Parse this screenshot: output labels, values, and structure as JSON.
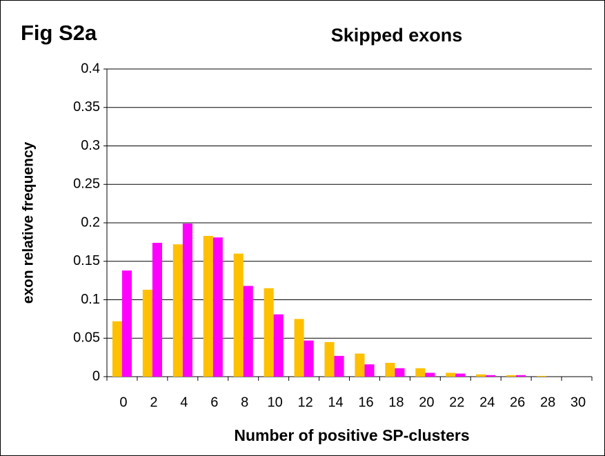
{
  "chart_data": {
    "type": "bar",
    "annotation": "Fig S2a",
    "title": "Skipped exons",
    "ylabel": "exon relative frequency",
    "xlabel": "Number of positive SP-clusters",
    "categories": [
      "0",
      "2",
      "4",
      "6",
      "8",
      "10",
      "12",
      "14",
      "16",
      "18",
      "20",
      "22",
      "24",
      "26",
      "28",
      "30"
    ],
    "series": [
      {
        "color": "#ffc000",
        "values": [
          0.072,
          0.113,
          0.172,
          0.183,
          0.16,
          0.115,
          0.075,
          0.045,
          0.03,
          0.018,
          0.011,
          0.005,
          0.003,
          0.002,
          0.001,
          0
        ]
      },
      {
        "color": "#ff00ff",
        "values": [
          0.138,
          0.174,
          0.199,
          0.181,
          0.118,
          0.081,
          0.047,
          0.027,
          0.016,
          0.011,
          0.005,
          0.004,
          0.002,
          0.002,
          0,
          0
        ]
      }
    ],
    "ylim": [
      0,
      0.4
    ],
    "yticks": [
      0,
      0.05,
      0.1,
      0.15,
      0.2,
      0.25,
      0.3,
      0.35,
      0.4
    ],
    "grid": true
  }
}
